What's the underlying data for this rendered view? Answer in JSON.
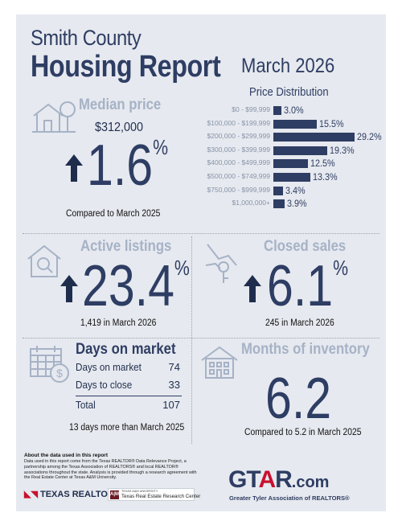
{
  "header": {
    "county": "Smith County",
    "report": "Housing Report",
    "month": "March 2026"
  },
  "median_price": {
    "label": "Median price",
    "value": "$312,000",
    "change": "1.6",
    "unit": "%",
    "direction": "up",
    "caption": "Compared to March 2025"
  },
  "price_distribution": {
    "title": "Price Distribution",
    "chart_data": {
      "type": "bar",
      "orientation": "horizontal",
      "categories": [
        "$0 - $99,999",
        "$100,000 - $199,999",
        "$200,000 - $299,999",
        "$300,000 - $399,999",
        "$400,000 - $499,999",
        "$500,000 - $749,999",
        "$750,000 - $999,999",
        "$1,000,000+"
      ],
      "values": [
        3.0,
        15.5,
        29.2,
        19.3,
        12.5,
        13.3,
        3.4,
        3.9
      ],
      "value_labels": [
        "3.0%",
        "15.5%",
        "29.2%",
        "19.3%",
        "12.5%",
        "13.3%",
        "3.4%",
        "3.9%"
      ],
      "unit": "%",
      "xlim": [
        0,
        30
      ],
      "color": "#2e3d63"
    }
  },
  "active_listings": {
    "label": "Active listings",
    "change": "23.4",
    "unit": "%",
    "direction": "up",
    "caption": "1,419 in March 2026"
  },
  "closed_sales": {
    "label": "Closed sales",
    "change": "6.1",
    "unit": "%",
    "direction": "up",
    "caption": "245 in March 2026"
  },
  "days_on_market": {
    "label": "Days on market",
    "rows": [
      {
        "label": "Days on market",
        "value": "74"
      },
      {
        "label": "Days to close",
        "value": "33"
      }
    ],
    "total_label": "Total",
    "total_value": "107",
    "caption": "13 days more than March 2025"
  },
  "months_inventory": {
    "label": "Months of inventory",
    "value": "6.2",
    "caption": "Compared to 5.2 in March 2025"
  },
  "footer": {
    "about_title": "About the data used in this report",
    "about_text": "Data used in this report come from the Texas REALTOR® Data Relevance Project, a partnership among the Texas Association of REALTORS® and local REALTOR® associations throughout the state. Analysis is provided through a research agreement with the Real Estate Center at Texas A&M University.",
    "texas_realtors": "TEXAS REALTORS",
    "tamu_small": "TEXAS A&M UNIVERSITY",
    "tamu_center": "Texas Real Estate Research Center",
    "gtar_main": "GTAR",
    "gtar_com": ".com",
    "gtar_sub": "Greater Tyler Association of REALTORS®"
  },
  "colors": {
    "navy": "#2e3d63",
    "light_blue": "#a6b2c6",
    "background": "#e6e9ef",
    "gtar_red": "#c8102e"
  }
}
